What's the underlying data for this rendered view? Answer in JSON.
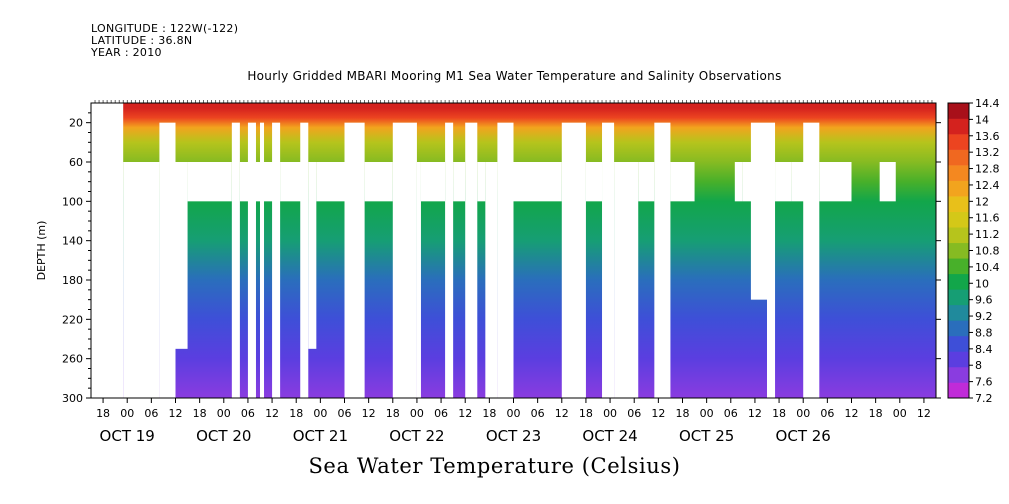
{
  "header": {
    "longitude": "LONGITUDE : 122W(-122)",
    "latitude": "LATITUDE : 36.8N",
    "year": "YEAR : 2010"
  },
  "chart_data": {
    "type": "heatmap",
    "title": "Hourly Gridded MBARI Mooring M1 Sea Water Temperature and Salinity Observations",
    "xlabel": "Sea Water Temperature (Celsius)",
    "ylabel": "DEPTH (m)",
    "ylim": [
      0,
      300
    ],
    "y_inverted": true,
    "yticks": [
      20,
      60,
      100,
      140,
      180,
      220,
      260,
      300
    ],
    "x_range_hours_since_oct19_00": [
      -9,
      201
    ],
    "x_hour_ticks": [
      {
        "t": -6,
        "label": "18"
      },
      {
        "t": 0,
        "label": "00"
      },
      {
        "t": 6,
        "label": "06"
      },
      {
        "t": 12,
        "label": "12"
      },
      {
        "t": 18,
        "label": "18"
      },
      {
        "t": 24,
        "label": "00"
      },
      {
        "t": 30,
        "label": "06"
      },
      {
        "t": 36,
        "label": "12"
      },
      {
        "t": 42,
        "label": "18"
      },
      {
        "t": 48,
        "label": "00"
      },
      {
        "t": 54,
        "label": "06"
      },
      {
        "t": 60,
        "label": "12"
      },
      {
        "t": 66,
        "label": "18"
      },
      {
        "t": 72,
        "label": "00"
      },
      {
        "t": 78,
        "label": "06"
      },
      {
        "t": 84,
        "label": "12"
      },
      {
        "t": 90,
        "label": "18"
      },
      {
        "t": 96,
        "label": "00"
      },
      {
        "t": 102,
        "label": "06"
      },
      {
        "t": 108,
        "label": "12"
      },
      {
        "t": 114,
        "label": "18"
      },
      {
        "t": 120,
        "label": "00"
      },
      {
        "t": 126,
        "label": "06"
      },
      {
        "t": 132,
        "label": "12"
      },
      {
        "t": 138,
        "label": "18"
      },
      {
        "t": 144,
        "label": "00"
      },
      {
        "t": 150,
        "label": "06"
      },
      {
        "t": 156,
        "label": "12"
      },
      {
        "t": 162,
        "label": "18"
      },
      {
        "t": 168,
        "label": "00"
      },
      {
        "t": 174,
        "label": "06"
      },
      {
        "t": 180,
        "label": "12"
      },
      {
        "t": 186,
        "label": "18"
      },
      {
        "t": 192,
        "label": "00"
      },
      {
        "t": 198,
        "label": "12"
      }
    ],
    "x_day_labels": [
      {
        "t": 0,
        "label": "OCT 19"
      },
      {
        "t": 24,
        "label": "OCT 20"
      },
      {
        "t": 48,
        "label": "OCT 21"
      },
      {
        "t": 72,
        "label": "OCT 22"
      },
      {
        "t": 96,
        "label": "OCT 23"
      },
      {
        "t": 120,
        "label": "OCT 24"
      },
      {
        "t": 144,
        "label": "OCT 25"
      },
      {
        "t": 168,
        "label": "OCT 26"
      }
    ],
    "depth_profile": [
      {
        "depth": 5,
        "temp": 14.2
      },
      {
        "depth": 15,
        "temp": 13.6
      },
      {
        "depth": 25,
        "temp": 12.4
      },
      {
        "depth": 40,
        "temp": 11.4
      },
      {
        "depth": 60,
        "temp": 10.8
      },
      {
        "depth": 80,
        "temp": 10.4
      },
      {
        "depth": 100,
        "temp": 10.1
      },
      {
        "depth": 140,
        "temp": 9.7
      },
      {
        "depth": 180,
        "temp": 9.1
      },
      {
        "depth": 220,
        "temp": 8.6
      },
      {
        "depth": 260,
        "temp": 8.1
      },
      {
        "depth": 300,
        "temp": 7.6
      }
    ],
    "colorbar": {
      "levels": [
        "7.2",
        "7.6",
        "8",
        "8.4",
        "8.8",
        "9.2",
        "9.6",
        "10",
        "10.4",
        "10.8",
        "11.2",
        "11.6",
        "12",
        "12.4",
        "12.8",
        "13.2",
        "13.6",
        "14",
        "14.4"
      ],
      "colors": [
        "#c02bd8",
        "#8a3ce0",
        "#5b3ee0",
        "#3e4fd8",
        "#2a6ebc",
        "#208a9c",
        "#169e74",
        "#12a64a",
        "#48b02a",
        "#86bb22",
        "#b6c41c",
        "#d4c818",
        "#e8c01a",
        "#f2a41e",
        "#f48820",
        "#f06820",
        "#ec4420",
        "#d4221e",
        "#a8101a"
      ]
    },
    "missing_hours": [
      {
        "t": [
          -9,
          -1
        ],
        "depth": [
          0,
          300
        ]
      },
      {
        "t": [
          -1,
          8
        ],
        "depth": [
          60,
          300
        ]
      },
      {
        "t": [
          8,
          12
        ],
        "depth": [
          20,
          300
        ]
      },
      {
        "t": [
          12,
          15
        ],
        "depth": [
          60,
          250
        ]
      },
      {
        "t": [
          15,
          26
        ],
        "depth": [
          60,
          100
        ]
      },
      {
        "t": [
          26,
          28
        ],
        "depth": [
          20,
          300
        ]
      },
      {
        "t": [
          30,
          32
        ],
        "depth": [
          20,
          300
        ]
      },
      {
        "t": [
          28,
          38
        ],
        "depth": [
          60,
          100
        ]
      },
      {
        "t": [
          33,
          34
        ],
        "depth": [
          20,
          300
        ]
      },
      {
        "t": [
          36,
          38
        ],
        "depth": [
          20,
          300
        ]
      },
      {
        "t": [
          38,
          44
        ],
        "depth": [
          60,
          100
        ]
      },
      {
        "t": [
          43,
          45
        ],
        "depth": [
          20,
          300
        ]
      },
      {
        "t": [
          45,
          47
        ],
        "depth": [
          60,
          250
        ]
      },
      {
        "t": [
          47,
          54
        ],
        "depth": [
          60,
          100
        ]
      },
      {
        "t": [
          54,
          59
        ],
        "depth": [
          20,
          300
        ]
      },
      {
        "t": [
          59,
          66
        ],
        "depth": [
          60,
          100
        ]
      },
      {
        "t": [
          66,
          72
        ],
        "depth": [
          20,
          300
        ]
      },
      {
        "t": [
          72,
          73
        ],
        "depth": [
          60,
          300
        ]
      },
      {
        "t": [
          73,
          79
        ],
        "depth": [
          60,
          100
        ]
      },
      {
        "t": [
          79,
          81
        ],
        "depth": [
          20,
          300
        ]
      },
      {
        "t": [
          81,
          84
        ],
        "depth": [
          60,
          100
        ]
      },
      {
        "t": [
          84,
          87
        ],
        "depth": [
          20,
          300
        ]
      },
      {
        "t": [
          87,
          89
        ],
        "depth": [
          60,
          100
        ]
      },
      {
        "t": [
          89,
          92
        ],
        "depth": [
          60,
          300
        ]
      },
      {
        "t": [
          92,
          96
        ],
        "depth": [
          20,
          300
        ]
      },
      {
        "t": [
          96,
          108
        ],
        "depth": [
          60,
          100
        ]
      },
      {
        "t": [
          108,
          114
        ],
        "depth": [
          20,
          300
        ]
      },
      {
        "t": [
          114,
          118
        ],
        "depth": [
          60,
          100
        ]
      },
      {
        "t": [
          118,
          121
        ],
        "depth": [
          20,
          300
        ]
      },
      {
        "t": [
          121,
          127
        ],
        "depth": [
          60,
          300
        ]
      },
      {
        "t": [
          127,
          131
        ],
        "depth": [
          60,
          100
        ]
      },
      {
        "t": [
          131,
          135
        ],
        "depth": [
          20,
          300
        ]
      },
      {
        "t": [
          135,
          141
        ],
        "depth": [
          60,
          100
        ]
      },
      {
        "t": [
          151,
          153
        ],
        "depth": [
          60,
          100
        ]
      },
      {
        "t": [
          153,
          161
        ],
        "depth": [
          60,
          100
        ]
      },
      {
        "t": [
          155,
          159
        ],
        "depth": [
          20,
          200
        ]
      },
      {
        "t": [
          159,
          161
        ],
        "depth": [
          20,
          300
        ]
      },
      {
        "t": [
          161,
          165
        ],
        "depth": [
          60,
          100
        ]
      },
      {
        "t": [
          165,
          170
        ],
        "depth": [
          60,
          100
        ]
      },
      {
        "t": [
          168,
          172
        ],
        "depth": [
          20,
          300
        ]
      },
      {
        "t": [
          172,
          180
        ],
        "depth": [
          60,
          100
        ]
      },
      {
        "t": [
          187,
          191
        ],
        "depth": [
          60,
          100
        ]
      }
    ]
  }
}
